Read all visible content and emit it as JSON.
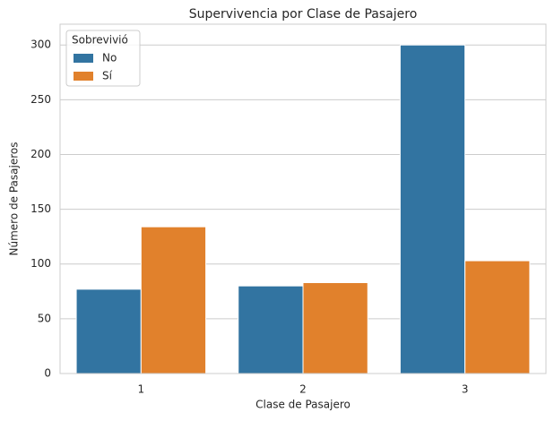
{
  "chart_data": {
    "type": "grouped_bar",
    "title": "Supervivencia por Clase de Pasajero",
    "x_label": "Clase de Pasajero",
    "y_label": "Número de Pasajeros",
    "categories": [
      "1",
      "2",
      "3"
    ],
    "series": [
      {
        "name": "No",
        "color": "#3274a1",
        "values": [
          77,
          80,
          300
        ]
      },
      {
        "name": "Sí",
        "color": "#e1812c",
        "values": [
          134,
          83,
          103
        ]
      }
    ],
    "ylim": [
      0,
      319
    ],
    "yticks": [
      0,
      50,
      100,
      150,
      200,
      250,
      300
    ],
    "grid": true,
    "legend_title": "Sobrevivió",
    "legend_position": "upper-left"
  }
}
